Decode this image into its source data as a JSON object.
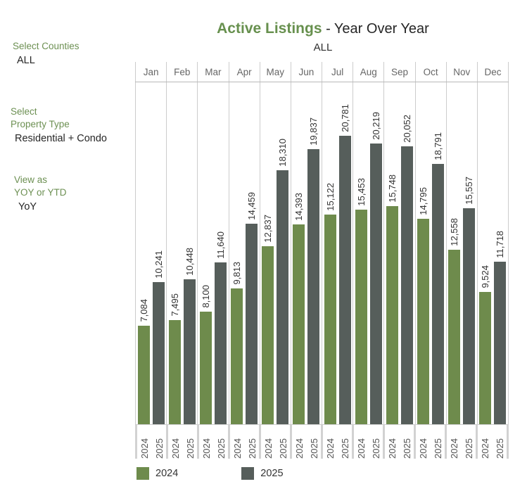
{
  "title": {
    "highlight": "Active Listings",
    "rest": " - Year Over Year",
    "subtitle": "ALL"
  },
  "filters": [
    {
      "label_lines": [
        "Select Counties"
      ],
      "value": "ALL"
    },
    {
      "label_lines": [
        "Select",
        "Property Type"
      ],
      "value": "Residential + Condo"
    },
    {
      "label_lines": [
        "View as",
        "YOY or YTD"
      ],
      "value": "YoY"
    }
  ],
  "legend": [
    {
      "label": "2024",
      "color": "#6e8b4c"
    },
    {
      "label": "2025",
      "color": "#565e5b"
    }
  ],
  "colors": {
    "title_accent": "#67904e",
    "sidebar_label": "#6d9053",
    "series_2024": "#6e8b4c",
    "series_2025": "#565e5b",
    "grid_line": "#cccccc",
    "month_text": "#666666",
    "value_label_text": "#333333"
  },
  "chart_data": {
    "type": "bar",
    "title": "Active Listings - Year Over Year",
    "subtitle": "ALL",
    "categories": [
      "Jan",
      "Feb",
      "Mar",
      "Apr",
      "May",
      "Jun",
      "Jul",
      "Aug",
      "Sep",
      "Oct",
      "Nov",
      "Dec"
    ],
    "series": [
      {
        "name": "2024",
        "color": "#6e8b4c",
        "values": [
          7084,
          7495,
          8100,
          9813,
          12837,
          14393,
          15122,
          15453,
          15748,
          14795,
          12558,
          9524
        ]
      },
      {
        "name": "2025",
        "color": "#565e5b",
        "values": [
          10241,
          10448,
          11640,
          14459,
          18310,
          19837,
          20781,
          20219,
          20052,
          18791,
          15557,
          11718
        ]
      }
    ],
    "value_labels": true,
    "value_label_orientation": "vertical",
    "xlabel": "",
    "ylabel": "",
    "ylim": [
      0,
      24700
    ],
    "grid": false,
    "legend_position": "bottom-left"
  }
}
